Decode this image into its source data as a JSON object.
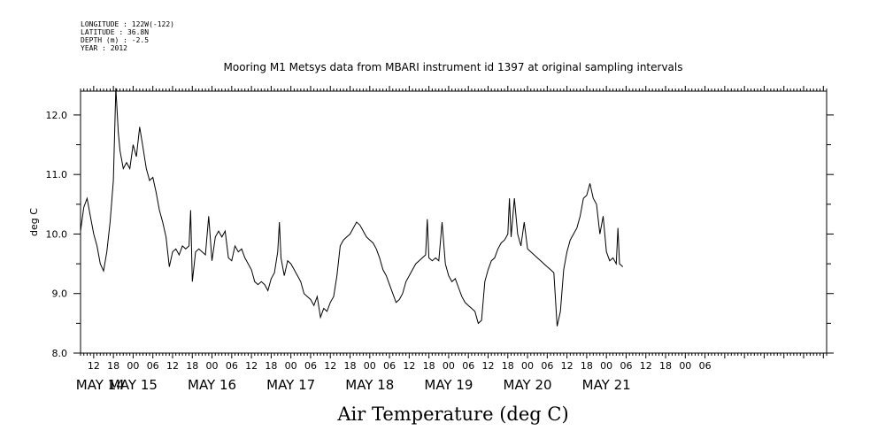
{
  "header": {
    "meta_lines": [
      "LONGITUDE : 122W(-122)",
      "LATITUDE : 36.8N",
      "DEPTH (m) : -2.5",
      "YEAR : 2012"
    ]
  },
  "chart_data": {
    "type": "line",
    "title": "Mooring M1 Metsys data from MBARI instrument id 1397 at original sampling intervals",
    "xlabel": "Air Temperature (deg C)",
    "ylabel": "deg C",
    "ylim": [
      8.0,
      12.4
    ],
    "y_ticks": [
      8.0,
      9.0,
      10.0,
      11.0,
      12.0
    ],
    "y_tick_labels": [
      "8.0",
      "9.0",
      "10.0",
      "11.0",
      "12.0"
    ],
    "xlim_hours_from_may14_00": [
      8,
      235
    ],
    "hour_tick_labels": [
      "12",
      "18",
      "00",
      "06",
      "12",
      "18",
      "00",
      "06",
      "12",
      "18",
      "00",
      "06",
      "12",
      "18",
      "00",
      "06",
      "12",
      "18",
      "00",
      "06",
      "12",
      "18",
      "00",
      "06",
      "12",
      "18",
      "00",
      "06",
      "12",
      "18",
      "00",
      "06"
    ],
    "day_labels": [
      "MAY 14",
      "MAY 15",
      "MAY 16",
      "MAY 17",
      "MAY 18",
      "MAY 19",
      "MAY 20",
      "MAY 21"
    ],
    "grid": false,
    "series": [
      {
        "color": "#000000",
        "points": [
          [
            "2012-05-14 08:00",
            10.05
          ],
          [
            "2012-05-14 09:00",
            10.45
          ],
          [
            "2012-05-14 10:00",
            10.6
          ],
          [
            "2012-05-14 11:00",
            10.3
          ],
          [
            "2012-05-14 12:00",
            10.0
          ],
          [
            "2012-05-14 13:00",
            9.8
          ],
          [
            "2012-05-14 14:00",
            9.5
          ],
          [
            "2012-05-14 15:00",
            9.38
          ],
          [
            "2012-05-14 16:00",
            9.7
          ],
          [
            "2012-05-14 17:00",
            10.2
          ],
          [
            "2012-05-14 18:00",
            10.9
          ],
          [
            "2012-05-14 18:45",
            12.45
          ],
          [
            "2012-05-14 19:30",
            11.7
          ],
          [
            "2012-05-14 20:00",
            11.4
          ],
          [
            "2012-05-14 21:00",
            11.1
          ],
          [
            "2012-05-14 22:00",
            11.2
          ],
          [
            "2012-05-14 23:00",
            11.1
          ],
          [
            "2012-05-15 00:00",
            11.5
          ],
          [
            "2012-05-15 01:00",
            11.3
          ],
          [
            "2012-05-15 02:00",
            11.8
          ],
          [
            "2012-05-15 03:00",
            11.45
          ],
          [
            "2012-05-15 04:00",
            11.1
          ],
          [
            "2012-05-15 05:00",
            10.9
          ],
          [
            "2012-05-15 06:00",
            10.95
          ],
          [
            "2012-05-15 07:00",
            10.7
          ],
          [
            "2012-05-15 08:00",
            10.4
          ],
          [
            "2012-05-15 09:00",
            10.2
          ],
          [
            "2012-05-15 10:00",
            9.95
          ],
          [
            "2012-05-15 11:00",
            9.45
          ],
          [
            "2012-05-15 12:00",
            9.7
          ],
          [
            "2012-05-15 13:00",
            9.75
          ],
          [
            "2012-05-15 14:00",
            9.65
          ],
          [
            "2012-05-15 15:00",
            9.8
          ],
          [
            "2012-05-15 16:00",
            9.75
          ],
          [
            "2012-05-15 17:00",
            9.8
          ],
          [
            "2012-05-15 17:30",
            10.4
          ],
          [
            "2012-05-15 18:00",
            9.2
          ],
          [
            "2012-05-15 19:00",
            9.7
          ],
          [
            "2012-05-15 20:00",
            9.75
          ],
          [
            "2012-05-15 21:00",
            9.7
          ],
          [
            "2012-05-15 22:00",
            9.65
          ],
          [
            "2012-05-15 23:00",
            10.3
          ],
          [
            "2012-05-16 00:00",
            9.55
          ],
          [
            "2012-05-16 01:00",
            9.95
          ],
          [
            "2012-05-16 02:00",
            10.05
          ],
          [
            "2012-05-16 03:00",
            9.95
          ],
          [
            "2012-05-16 04:00",
            10.05
          ],
          [
            "2012-05-16 05:00",
            9.6
          ],
          [
            "2012-05-16 06:00",
            9.55
          ],
          [
            "2012-05-16 07:00",
            9.8
          ],
          [
            "2012-05-16 08:00",
            9.7
          ],
          [
            "2012-05-16 09:00",
            9.75
          ],
          [
            "2012-05-16 10:00",
            9.6
          ],
          [
            "2012-05-16 11:00",
            9.5
          ],
          [
            "2012-05-16 12:00",
            9.4
          ],
          [
            "2012-05-16 13:00",
            9.2
          ],
          [
            "2012-05-16 14:00",
            9.15
          ],
          [
            "2012-05-16 15:00",
            9.2
          ],
          [
            "2012-05-16 16:00",
            9.15
          ],
          [
            "2012-05-16 17:00",
            9.05
          ],
          [
            "2012-05-16 18:00",
            9.25
          ],
          [
            "2012-05-16 19:00",
            9.35
          ],
          [
            "2012-05-16 20:00",
            9.7
          ],
          [
            "2012-05-16 20:30",
            10.2
          ],
          [
            "2012-05-16 21:00",
            9.6
          ],
          [
            "2012-05-16 22:00",
            9.3
          ],
          [
            "2012-05-16 23:00",
            9.55
          ],
          [
            "2012-05-17 00:00",
            9.5
          ],
          [
            "2012-05-17 01:00",
            9.4
          ],
          [
            "2012-05-17 02:00",
            9.3
          ],
          [
            "2012-05-17 03:00",
            9.2
          ],
          [
            "2012-05-17 04:00",
            9.0
          ],
          [
            "2012-05-17 05:00",
            8.95
          ],
          [
            "2012-05-17 06:00",
            8.9
          ],
          [
            "2012-05-17 07:00",
            8.8
          ],
          [
            "2012-05-17 08:00",
            8.95
          ],
          [
            "2012-05-17 09:00",
            8.6
          ],
          [
            "2012-05-17 10:00",
            8.75
          ],
          [
            "2012-05-17 11:00",
            8.7
          ],
          [
            "2012-05-17 12:00",
            8.85
          ],
          [
            "2012-05-17 13:00",
            8.95
          ],
          [
            "2012-05-17 14:00",
            9.3
          ],
          [
            "2012-05-17 15:00",
            9.8
          ],
          [
            "2012-05-17 16:00",
            9.9
          ],
          [
            "2012-05-17 17:00",
            9.95
          ],
          [
            "2012-05-17 18:00",
            10.0
          ],
          [
            "2012-05-17 19:00",
            10.1
          ],
          [
            "2012-05-17 20:00",
            10.2
          ],
          [
            "2012-05-17 21:00",
            10.15
          ],
          [
            "2012-05-17 22:00",
            10.05
          ],
          [
            "2012-05-17 23:00",
            9.95
          ],
          [
            "2012-05-18 00:00",
            9.9
          ],
          [
            "2012-05-18 01:00",
            9.85
          ],
          [
            "2012-05-18 02:00",
            9.75
          ],
          [
            "2012-05-18 03:00",
            9.6
          ],
          [
            "2012-05-18 04:00",
            9.4
          ],
          [
            "2012-05-18 05:00",
            9.3
          ],
          [
            "2012-05-18 06:00",
            9.15
          ],
          [
            "2012-05-18 07:00",
            9.0
          ],
          [
            "2012-05-18 08:00",
            8.85
          ],
          [
            "2012-05-18 09:00",
            8.9
          ],
          [
            "2012-05-18 10:00",
            9.0
          ],
          [
            "2012-05-18 11:00",
            9.2
          ],
          [
            "2012-05-18 12:00",
            9.3
          ],
          [
            "2012-05-18 13:00",
            9.4
          ],
          [
            "2012-05-18 14:00",
            9.5
          ],
          [
            "2012-05-18 15:00",
            9.55
          ],
          [
            "2012-05-18 16:00",
            9.6
          ],
          [
            "2012-05-18 17:00",
            9.65
          ],
          [
            "2012-05-18 17:30",
            10.25
          ],
          [
            "2012-05-18 18:00",
            9.6
          ],
          [
            "2012-05-18 19:00",
            9.55
          ],
          [
            "2012-05-18 20:00",
            9.6
          ],
          [
            "2012-05-18 21:00",
            9.55
          ],
          [
            "2012-05-18 22:00",
            10.2
          ],
          [
            "2012-05-18 23:00",
            9.5
          ],
          [
            "2012-05-19 00:00",
            9.3
          ],
          [
            "2012-05-19 01:00",
            9.2
          ],
          [
            "2012-05-19 02:00",
            9.25
          ],
          [
            "2012-05-19 03:00",
            9.1
          ],
          [
            "2012-05-19 04:00",
            8.95
          ],
          [
            "2012-05-19 05:00",
            8.85
          ],
          [
            "2012-05-19 06:00",
            8.8
          ],
          [
            "2012-05-19 07:00",
            8.75
          ],
          [
            "2012-05-19 08:00",
            8.7
          ],
          [
            "2012-05-19 09:00",
            8.5
          ],
          [
            "2012-05-19 10:00",
            8.55
          ],
          [
            "2012-05-19 11:00",
            9.2
          ],
          [
            "2012-05-19 12:00",
            9.4
          ],
          [
            "2012-05-19 13:00",
            9.55
          ],
          [
            "2012-05-19 14:00",
            9.6
          ],
          [
            "2012-05-19 15:00",
            9.75
          ],
          [
            "2012-05-19 16:00",
            9.85
          ],
          [
            "2012-05-19 17:00",
            9.9
          ],
          [
            "2012-05-19 18:00",
            10.0
          ],
          [
            "2012-05-19 18:30",
            10.6
          ],
          [
            "2012-05-19 19:00",
            9.95
          ],
          [
            "2012-05-19 20:00",
            10.6
          ],
          [
            "2012-05-19 21:00",
            10.0
          ],
          [
            "2012-05-19 22:00",
            9.8
          ],
          [
            "2012-05-19 23:00",
            10.2
          ],
          [
            "2012-05-20 00:00",
            9.75
          ],
          [
            "2012-05-20 01:00",
            9.7
          ],
          [
            "2012-05-20 02:00",
            9.65
          ],
          [
            "2012-05-20 03:00",
            9.6
          ],
          [
            "2012-05-20 04:00",
            9.55
          ],
          [
            "2012-05-20 05:00",
            9.5
          ],
          [
            "2012-05-20 06:00",
            9.45
          ],
          [
            "2012-05-20 07:00",
            9.4
          ],
          [
            "2012-05-20 08:00",
            9.35
          ],
          [
            "2012-05-20 09:00",
            8.45
          ],
          [
            "2012-05-20 10:00",
            8.7
          ],
          [
            "2012-05-20 11:00",
            9.4
          ],
          [
            "2012-05-20 12:00",
            9.7
          ],
          [
            "2012-05-20 13:00",
            9.9
          ],
          [
            "2012-05-20 14:00",
            10.0
          ],
          [
            "2012-05-20 15:00",
            10.1
          ],
          [
            "2012-05-20 16:00",
            10.3
          ],
          [
            "2012-05-20 17:00",
            10.6
          ],
          [
            "2012-05-20 18:00",
            10.65
          ],
          [
            "2012-05-20 19:00",
            10.85
          ],
          [
            "2012-05-20 20:00",
            10.6
          ],
          [
            "2012-05-20 21:00",
            10.5
          ],
          [
            "2012-05-20 22:00",
            10.0
          ],
          [
            "2012-05-20 23:00",
            10.3
          ],
          [
            "2012-05-21 00:00",
            9.7
          ],
          [
            "2012-05-21 01:00",
            9.55
          ],
          [
            "2012-05-21 02:00",
            9.6
          ],
          [
            "2012-05-21 03:00",
            9.5
          ],
          [
            "2012-05-21 03:30",
            10.1
          ],
          [
            "2012-05-21 04:00",
            9.5
          ],
          [
            "2012-05-21 05:00",
            9.45
          ]
        ]
      }
    ]
  }
}
